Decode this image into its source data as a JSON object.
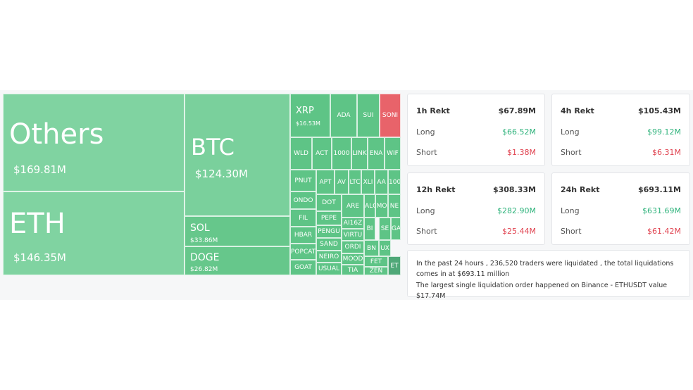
{
  "treemap": {
    "tiles": [
      {
        "label": "Others",
        "value": "$169.81M",
        "color": "#80d3a1"
      },
      {
        "label": "ETH",
        "value": "$146.35M",
        "color": "#80d3a1"
      },
      {
        "label": "BTC",
        "value": "$124.30M",
        "color": "#7ad09c"
      },
      {
        "label": "SOL",
        "value": "$33.86M",
        "color": "#66c78b"
      },
      {
        "label": "DOGE",
        "value": "$26.82M",
        "color": "#66c78b"
      },
      {
        "label": "XRP",
        "value": "$16.53M",
        "color": "#5ec486"
      },
      {
        "label": "ADA",
        "color": "#5ec486"
      },
      {
        "label": "SUI",
        "color": "#5ec486"
      },
      {
        "label": "SONI",
        "color": "#e8636a"
      },
      {
        "label": "WLD",
        "color": "#5ec486"
      },
      {
        "label": "ACT",
        "color": "#5ec486"
      },
      {
        "label": "1000",
        "color": "#5ec486"
      },
      {
        "label": "LINK",
        "color": "#5ec486"
      },
      {
        "label": "ENA",
        "color": "#5ec486"
      },
      {
        "label": "WIF",
        "color": "#5ec486"
      },
      {
        "label": "PNUT",
        "color": "#5ec486"
      },
      {
        "label": "ONDO",
        "color": "#5ec486"
      },
      {
        "label": "FIL",
        "color": "#5ec486"
      },
      {
        "label": "HBAR",
        "color": "#5ec486"
      },
      {
        "label": "POPCAT",
        "color": "#5ec486"
      },
      {
        "label": "GOAT",
        "color": "#5ec486"
      },
      {
        "label": "APT",
        "color": "#5ec486"
      },
      {
        "label": "AV",
        "color": "#5ec486"
      },
      {
        "label": "LTC",
        "color": "#5ec486"
      },
      {
        "label": "XLI",
        "color": "#5ec486"
      },
      {
        "label": "AA",
        "color": "#5ec486"
      },
      {
        "label": "100",
        "color": "#5ec486"
      },
      {
        "label": "DOT",
        "color": "#5ec486"
      },
      {
        "label": "PEPE",
        "color": "#5ec486"
      },
      {
        "label": "PENGU",
        "color": "#5ec486"
      },
      {
        "label": "SAND",
        "color": "#5ec486"
      },
      {
        "label": "NEIRO",
        "color": "#5ec486"
      },
      {
        "label": "USUAL",
        "color": "#5ec486"
      },
      {
        "label": "ARE",
        "color": "#5ec486"
      },
      {
        "label": "AI16Z",
        "color": "#5ec486"
      },
      {
        "label": "VIRTU",
        "color": "#5ec486"
      },
      {
        "label": "ORDI",
        "color": "#5ec486"
      },
      {
        "label": "MOOD",
        "color": "#5ec486"
      },
      {
        "label": "TIA",
        "color": "#5ec486"
      },
      {
        "label": "ALC",
        "color": "#5ec486"
      },
      {
        "label": "MO",
        "color": "#5ec486"
      },
      {
        "label": "NE",
        "color": "#5ec486"
      },
      {
        "label": "BI",
        "color": "#5ec486"
      },
      {
        "label": "SE",
        "color": "#5ec486"
      },
      {
        "label": "GA",
        "color": "#5ec486"
      },
      {
        "label": "BN",
        "color": "#5ec486"
      },
      {
        "label": "UX",
        "color": "#5ec486"
      },
      {
        "label": "FET",
        "color": "#5ec486"
      },
      {
        "label": "ZEN",
        "color": "#5ec486"
      },
      {
        "label": "ET",
        "color": "#4fa878"
      }
    ]
  },
  "stats": [
    {
      "title": "1h Rekt",
      "total": "$67.89M",
      "long_label": "Long",
      "long": "$66.52M",
      "short_label": "Short",
      "short": "$1.38M"
    },
    {
      "title": "4h Rekt",
      "total": "$105.43M",
      "long_label": "Long",
      "long": "$99.12M",
      "short_label": "Short",
      "short": "$6.31M"
    },
    {
      "title": "12h Rekt",
      "total": "$308.33M",
      "long_label": "Long",
      "long": "$282.90M",
      "short_label": "Short",
      "short": "$25.44M"
    },
    {
      "title": "24h Rekt",
      "total": "$693.11M",
      "long_label": "Long",
      "long": "$631.69M",
      "short_label": "Short",
      "short": "$61.42M"
    }
  ],
  "summary": [
    "In the past 24 hours , 236,520 traders were liquidated , the total liquidations comes in at $693.11 million",
    "The largest single liquidation order happened on Binance - ETHUSDT value $17.74M"
  ]
}
